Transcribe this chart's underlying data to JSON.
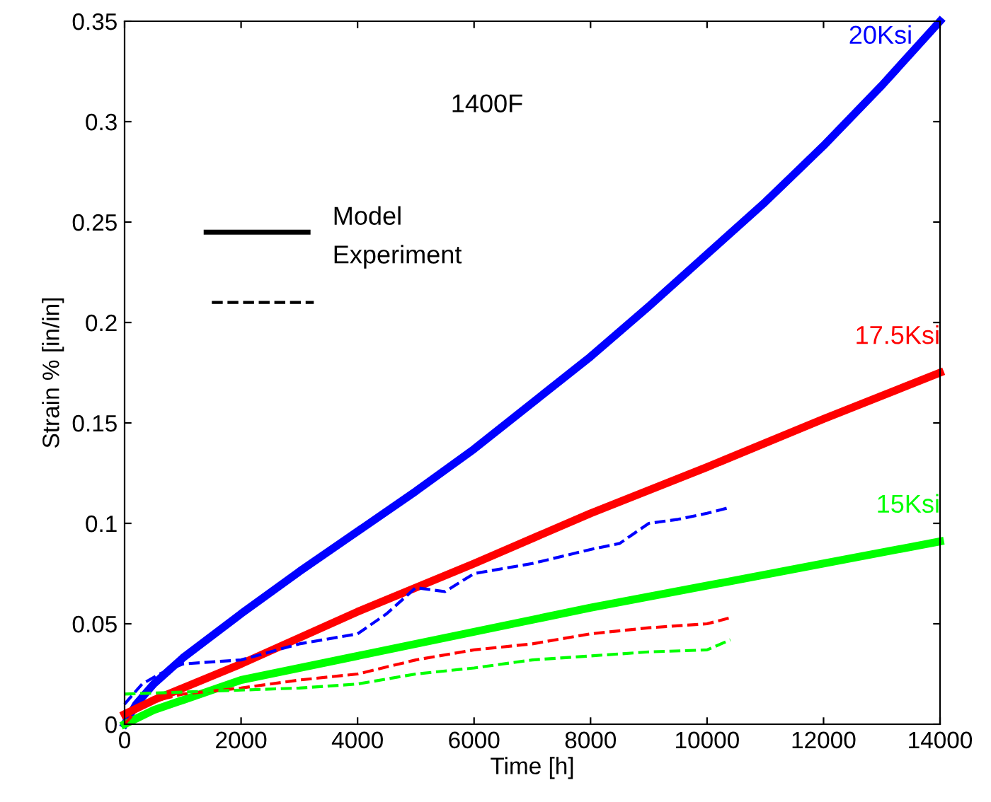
{
  "chart_data": {
    "type": "line",
    "xlabel": "Time [h]",
    "ylabel": "Strain % [in/in]",
    "annotations": [
      "1400F",
      "Model",
      "Experiment"
    ],
    "xlim": [
      0,
      14000
    ],
    "xticks": [
      0,
      2000,
      4000,
      6000,
      8000,
      10000,
      12000,
      14000
    ],
    "ylim": [
      0,
      0.35
    ],
    "yticks": [
      0,
      0.05,
      0.1,
      0.15,
      0.2,
      0.25,
      0.3,
      0.35
    ],
    "grid": false,
    "legend": false,
    "series": [
      {
        "name": "20Ksi",
        "color": "#0000ff",
        "line_style": "solid",
        "x": [
          0,
          200,
          500,
          1000,
          2000,
          3000,
          4000,
          5000,
          6000,
          7000,
          8000,
          9000,
          10000,
          11000,
          12000,
          13000,
          14000
        ],
        "values": [
          0.0,
          0.01,
          0.02,
          0.033,
          0.055,
          0.076,
          0.096,
          0.116,
          0.137,
          0.16,
          0.183,
          0.208,
          0.234,
          0.26,
          0.288,
          0.318,
          0.35
        ]
      },
      {
        "name": "17.5Ksi",
        "color": "#ff0000",
        "line_style": "solid",
        "x": [
          0,
          500,
          1000,
          2000,
          4000,
          6000,
          8000,
          10000,
          12000,
          14000
        ],
        "values": [
          0.005,
          0.012,
          0.018,
          0.03,
          0.056,
          0.08,
          0.105,
          0.128,
          0.152,
          0.175
        ]
      },
      {
        "name": "15Ksi",
        "color": "#00ff00",
        "line_style": "solid",
        "x": [
          0,
          500,
          1000,
          2000,
          4000,
          6000,
          8000,
          10000,
          12000,
          14000
        ],
        "values": [
          0.0,
          0.007,
          0.012,
          0.022,
          0.034,
          0.046,
          0.058,
          0.069,
          0.08,
          0.091
        ]
      },
      {
        "color": "#0000ff",
        "line_style": "dashed",
        "x": [
          0,
          300,
          600,
          1000,
          2000,
          3000,
          4000,
          4500,
          5000,
          5500,
          6000,
          7000,
          8000,
          8500,
          9000,
          9500,
          10000,
          10400
        ],
        "values": [
          0.01,
          0.02,
          0.025,
          0.03,
          0.032,
          0.04,
          0.045,
          0.055,
          0.068,
          0.066,
          0.075,
          0.08,
          0.087,
          0.09,
          0.1,
          0.102,
          0.105,
          0.108
        ]
      },
      {
        "color": "#ff0000",
        "line_style": "dashed",
        "x": [
          0,
          300,
          1000,
          2000,
          3000,
          4000,
          5000,
          6000,
          7000,
          8000,
          9000,
          10000,
          10400
        ],
        "values": [
          0.0,
          0.01,
          0.015,
          0.018,
          0.022,
          0.025,
          0.032,
          0.037,
          0.04,
          0.045,
          0.048,
          0.05,
          0.053
        ]
      },
      {
        "color": "#00ff00",
        "line_style": "dashed",
        "x": [
          0,
          1000,
          2000,
          3000,
          4000,
          5000,
          6000,
          7000,
          8000,
          9000,
          10000,
          10400
        ],
        "values": [
          0.015,
          0.016,
          0.017,
          0.018,
          0.02,
          0.025,
          0.028,
          0.032,
          0.034,
          0.036,
          0.037,
          0.042
        ]
      }
    ]
  }
}
